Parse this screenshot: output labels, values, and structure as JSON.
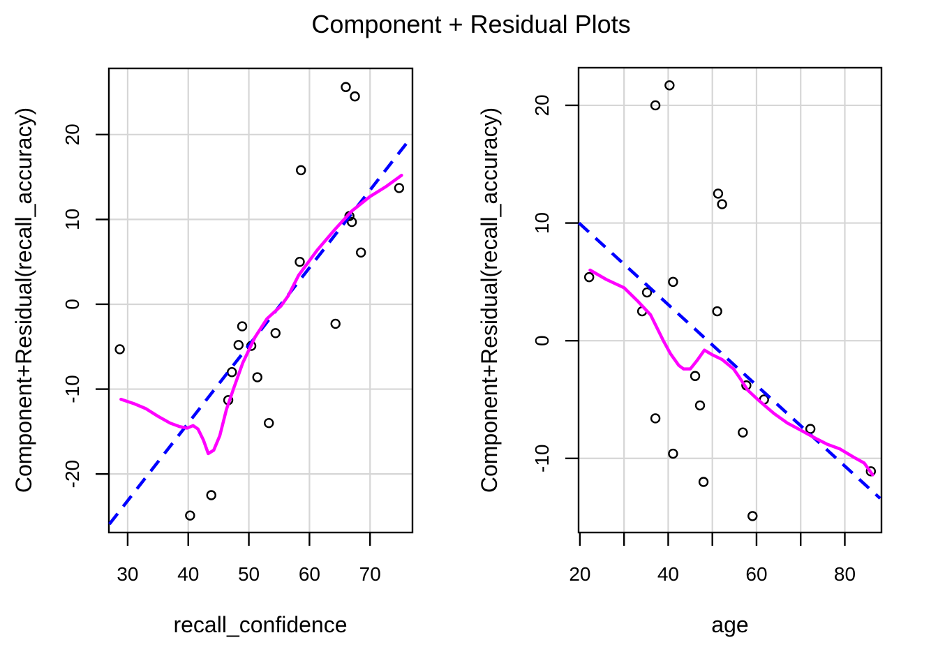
{
  "title": "Component + Residual Plots",
  "colors": {
    "background": "#ffffff",
    "points": "#000000",
    "dashed_line": "#0000FF",
    "smooth_line": "#FF00FF",
    "grid": "#D6D6D6",
    "axis": "#000000"
  },
  "chart_data": [
    {
      "type": "scatter",
      "panel": "left",
      "xlabel": "recall_confidence",
      "ylabel": "Component+Residual(recall_accuracy)",
      "xlim": [
        26.9,
        77.0
      ],
      "ylim": [
        -26.9,
        27.8
      ],
      "grid": true,
      "legend": "none",
      "x_ticks": [
        30,
        40,
        50,
        60,
        70
      ],
      "x_tick_labels": [
        "30",
        "40",
        "50",
        "60",
        "70"
      ],
      "y_ticks": [
        -20,
        -10,
        0,
        10,
        20
      ],
      "y_tick_labels": [
        "-20",
        "-10",
        "0",
        "10",
        "20"
      ],
      "x_grid": [
        30,
        40,
        50,
        60,
        70
      ],
      "y_grid": [
        -20,
        -10,
        0,
        10,
        20
      ],
      "points": [
        [
          28.7,
          -5.3
        ],
        [
          40.3,
          -24.9
        ],
        [
          43.8,
          -22.5
        ],
        [
          46.6,
          -11.3
        ],
        [
          47.2,
          -8.0
        ],
        [
          48.3,
          -4.8
        ],
        [
          48.9,
          -2.6
        ],
        [
          50.4,
          -4.9
        ],
        [
          51.4,
          -8.6
        ],
        [
          53.3,
          -14.0
        ],
        [
          54.4,
          -3.4
        ],
        [
          58.4,
          5.0
        ],
        [
          58.6,
          15.8
        ],
        [
          64.3,
          -2.3
        ],
        [
          66.0,
          25.6
        ],
        [
          66.6,
          10.4
        ],
        [
          67.0,
          9.7
        ],
        [
          67.5,
          24.5
        ],
        [
          68.5,
          6.1
        ],
        [
          74.8,
          13.7
        ]
      ],
      "linear_fit_dashed": [
        [
          27.0,
          -25.9
        ],
        [
          76.6,
          19.5
        ]
      ],
      "loess_smooth": [
        [
          28.9,
          -11.2
        ],
        [
          31,
          -11.7
        ],
        [
          33,
          -12.3
        ],
        [
          35,
          -13.2
        ],
        [
          37,
          -14.0
        ],
        [
          38.5,
          -14.4
        ],
        [
          39.8,
          -14.6
        ],
        [
          40.8,
          -14.3
        ],
        [
          41.6,
          -14.7
        ],
        [
          42.5,
          -16.0
        ],
        [
          43.3,
          -17.6
        ],
        [
          44.2,
          -17.2
        ],
        [
          45.2,
          -15.5
        ],
        [
          46.3,
          -12.4
        ],
        [
          47.5,
          -9.9
        ],
        [
          49,
          -6.9
        ],
        [
          51,
          -3.9
        ],
        [
          53,
          -1.7
        ],
        [
          55.3,
          -0.2
        ],
        [
          56.5,
          1.0
        ],
        [
          58.2,
          3.4
        ],
        [
          61.3,
          6.4
        ],
        [
          64.3,
          8.9
        ],
        [
          67,
          11.0
        ],
        [
          70,
          12.7
        ],
        [
          72.7,
          13.9
        ],
        [
          75.2,
          15.2
        ]
      ]
    },
    {
      "type": "scatter",
      "panel": "right",
      "xlabel": "age",
      "ylabel": "Component+Residual(recall_accuracy)",
      "xlim": [
        19.7,
        88.3
      ],
      "ylim": [
        -16.3,
        23.2
      ],
      "grid": true,
      "legend": "none",
      "x_ticks": [
        20,
        30,
        40,
        50,
        60,
        70,
        80
      ],
      "x_tick_labels": [
        "20",
        "",
        "40",
        "",
        "60",
        "",
        "80"
      ],
      "y_ticks": [
        -10,
        0,
        10,
        20
      ],
      "y_tick_labels": [
        "-10",
        "0",
        "10",
        "20"
      ],
      "x_grid": [
        30,
        40,
        50,
        60,
        70,
        80
      ],
      "y_grid": [
        -10,
        0,
        10,
        20
      ],
      "points": [
        [
          22.1,
          5.4
        ],
        [
          34.1,
          2.5
        ],
        [
          35.2,
          4.1
        ],
        [
          37.1,
          20.0
        ],
        [
          37.1,
          -6.6
        ],
        [
          40.3,
          21.7
        ],
        [
          41.1,
          5.0
        ],
        [
          41.1,
          -9.6
        ],
        [
          46.1,
          -3.0
        ],
        [
          47.2,
          -5.5
        ],
        [
          48.0,
          -12.0
        ],
        [
          51.1,
          2.5
        ],
        [
          51.3,
          12.5
        ],
        [
          52.2,
          11.6
        ],
        [
          56.9,
          -7.8
        ],
        [
          57.7,
          -3.8
        ],
        [
          59.1,
          -14.9
        ],
        [
          61.7,
          -5.0
        ],
        [
          72.2,
          -7.5
        ],
        [
          85.9,
          -11.1
        ]
      ],
      "linear_fit_dashed": [
        [
          19.8,
          10.0
        ],
        [
          88.0,
          -13.4
        ]
      ],
      "loess_smooth": [
        [
          22.3,
          6.0
        ],
        [
          26,
          5.2
        ],
        [
          30,
          4.5
        ],
        [
          33,
          3.4
        ],
        [
          36,
          2.2
        ],
        [
          38.9,
          0.0
        ],
        [
          40.5,
          -1.1
        ],
        [
          42.4,
          -2.1
        ],
        [
          43.5,
          -2.4
        ],
        [
          45,
          -2.4
        ],
        [
          46.5,
          -1.7
        ],
        [
          48.2,
          -0.8
        ],
        [
          50,
          -1.2
        ],
        [
          52.2,
          -1.6
        ],
        [
          54.8,
          -2.4
        ],
        [
          56.1,
          -3.1
        ],
        [
          58,
          -4.2
        ],
        [
          60,
          -4.9
        ],
        [
          61.5,
          -5.4
        ],
        [
          64,
          -6.2
        ],
        [
          67,
          -7.0
        ],
        [
          70,
          -7.6
        ],
        [
          73.4,
          -8.3
        ],
        [
          76,
          -8.8
        ],
        [
          78.9,
          -9.2
        ],
        [
          82,
          -9.9
        ],
        [
          84.4,
          -10.4
        ],
        [
          86.3,
          -11.4
        ]
      ]
    }
  ]
}
